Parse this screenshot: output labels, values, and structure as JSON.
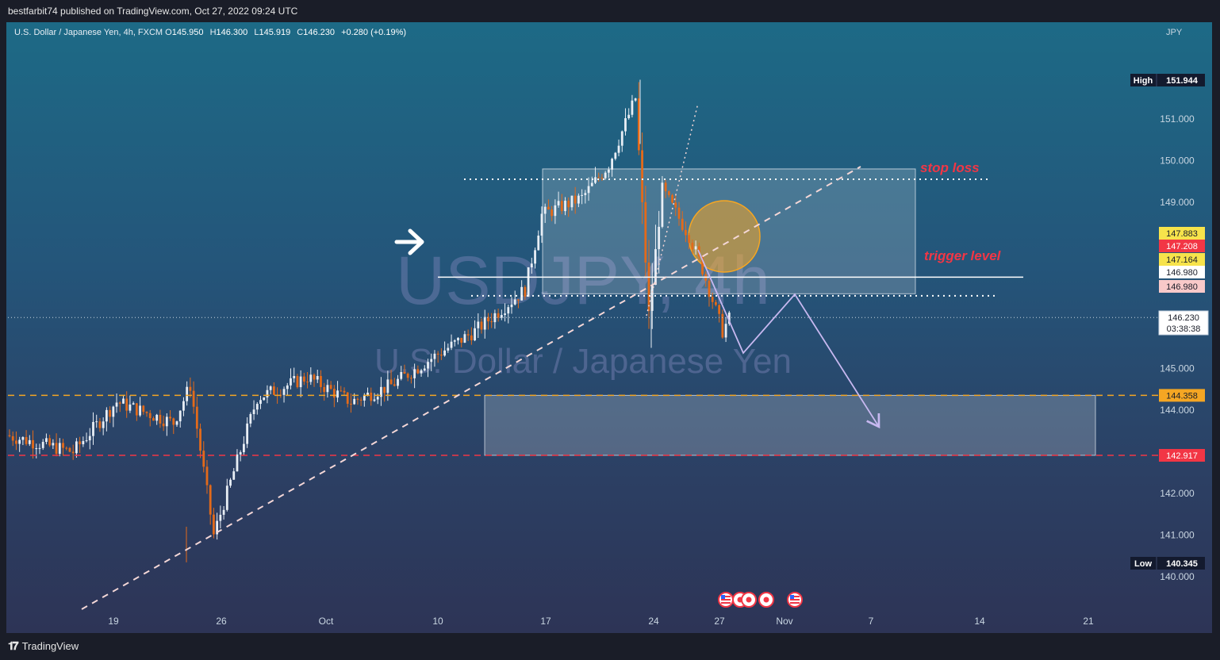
{
  "header": {
    "published_line": "bestfarbit74 published on TradingView.com, Oct 27, 2022 09:24 UTC"
  },
  "symbol_bar": {
    "name": "U.S. Dollar / Japanese Yen, 4h, FXCM",
    "o_label": "O",
    "o_value": "145.950",
    "h_label": "H",
    "h_value": "146.300",
    "l_label": "L",
    "l_value": "145.919",
    "c_label": "C",
    "c_value": "146.230",
    "change": "+0.280 (+0.19%)",
    "currency": "JPY"
  },
  "watermark": {
    "ticker": "USDJPY, 4h",
    "description": "U.S. Dollar / Japanese Yen"
  },
  "footer": {
    "brand": "TradingView"
  },
  "colors": {
    "candle_up": "#e8eef5",
    "candle_down": "#e36a1a",
    "stop_loss_text": "#f23645",
    "trigger_text": "#f23645",
    "orange_level": "#f5a623",
    "red_level": "#f23645"
  },
  "chart_data": {
    "type": "candlestick",
    "title": "",
    "xlabel": "",
    "ylabel": "",
    "x_ticks": [
      "19",
      "26",
      "Oct",
      "10",
      "17",
      "24",
      "27",
      "Nov",
      "7",
      "14",
      "21"
    ],
    "y_ticks": [
      "151.000",
      "150.000",
      "149.000",
      "145.000",
      "144.000",
      "142.000",
      "141.000",
      "140.000"
    ],
    "ylim": [
      139.3,
      152.8
    ],
    "high_label": "High",
    "high_value": "151.944",
    "low_label": "Low",
    "low_value": "140.345",
    "price_tags": [
      {
        "value": "147.883",
        "style": "yellow"
      },
      {
        "value": "147.208",
        "style": "red"
      },
      {
        "value": "147.164",
        "style": "yellow"
      },
      {
        "value": "146.980",
        "style": "white"
      },
      {
        "value": "146.980",
        "style": "pink"
      },
      {
        "value": "144.358",
        "style": "orange"
      },
      {
        "value": "142.917",
        "style": "red"
      }
    ],
    "last_price": "146.230",
    "countdown": "03:38:38",
    "annotations": {
      "stop_loss": "stop loss",
      "trigger_level": "trigger level"
    },
    "levels": {
      "stop_loss": 149.55,
      "trigger": 147.2,
      "retest": 146.75,
      "target_top": 144.358,
      "target_bottom": 142.917,
      "box_top": 149.8,
      "box_bottom": 146.8
    },
    "segments": [
      {
        "from_time": 0,
        "to_time": 20,
        "from": 143.4,
        "to": 143.0
      },
      {
        "from_time": 20,
        "to_time": 33,
        "from": 143.0,
        "to": 144.2
      },
      {
        "from_time": 33,
        "to_time": 50,
        "from": 144.2,
        "to": 143.7
      },
      {
        "from_time": 50,
        "to_time": 55,
        "from": 143.7,
        "to": 144.6
      },
      {
        "from_time": 55,
        "to_time": 62,
        "from": 144.6,
        "to": 141.0
      },
      {
        "from_time": 62,
        "to_time": 75,
        "from": 141.0,
        "to": 144.3
      },
      {
        "from_time": 75,
        "to_time": 90,
        "from": 144.3,
        "to": 144.8
      },
      {
        "from_time": 90,
        "to_time": 103,
        "from": 144.8,
        "to": 144.2
      },
      {
        "from_time": 103,
        "to_time": 115,
        "from": 144.2,
        "to": 144.6
      },
      {
        "from_time": 115,
        "to_time": 128,
        "from": 144.6,
        "to": 145.3
      },
      {
        "from_time": 128,
        "to_time": 140,
        "from": 145.3,
        "to": 145.9
      },
      {
        "from_time": 140,
        "to_time": 155,
        "from": 145.9,
        "to": 146.9
      },
      {
        "from_time": 155,
        "to_time": 160,
        "from": 146.9,
        "to": 148.7
      },
      {
        "from_time": 160,
        "to_time": 172,
        "from": 148.7,
        "to": 149.1
      },
      {
        "from_time": 172,
        "to_time": 180,
        "from": 149.1,
        "to": 149.9
      },
      {
        "from_time": 180,
        "to_time": 188,
        "from": 149.9,
        "to": 151.5
      },
      {
        "from_time": 188,
        "to_time": 192,
        "from": 151.5,
        "to": 146.3
      },
      {
        "from_time": 192,
        "to_time": 196,
        "from": 146.3,
        "to": 149.3
      },
      {
        "from_time": 196,
        "to_time": 204,
        "from": 149.3,
        "to": 148.2
      },
      {
        "from_time": 204,
        "to_time": 208,
        "from": 148.2,
        "to": 147.4
      },
      {
        "from_time": 208,
        "to_time": 214,
        "from": 147.4,
        "to": 145.9
      },
      {
        "from_time": 214,
        "to_time": 216,
        "from": 145.9,
        "to": 146.2
      }
    ]
  }
}
